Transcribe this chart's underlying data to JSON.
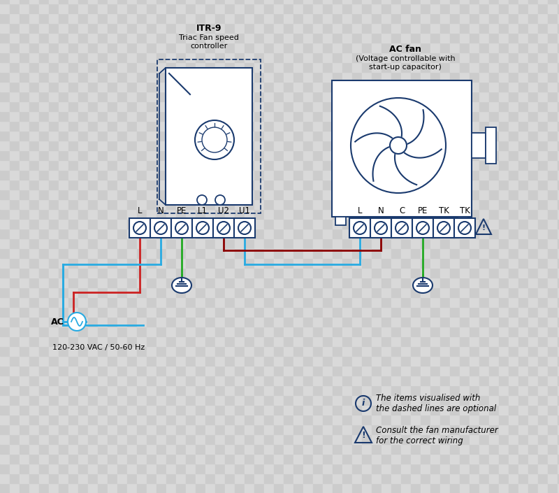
{
  "blue": "#1a3a6e",
  "light_blue": "#29abe2",
  "red": "#cc2222",
  "green": "#22aa22",
  "dark_red": "#8b0000",
  "checker1": "#cccccc",
  "checker2": "#d9d9d9",
  "checker_size": 14,
  "title1": "ITR-9",
  "subtitle1": "Triac Fan speed\ncontroller",
  "title2": "AC fan",
  "subtitle2": "(Voltage controllable with\nstart-up capacitor)",
  "labels_left": [
    "L",
    "N",
    "PE",
    "L1",
    "U2",
    "U1"
  ],
  "labels_right": [
    "L",
    "N",
    "C",
    "PE",
    "TK",
    "TK"
  ],
  "ac_label": "AC",
  "vac_label": "120-230 VAC / 50-60 Hz",
  "note1": "The items visualised with\nthe dashed lines are optional",
  "note2": "Consult the fan manufacturer\nfor the correct wiring"
}
